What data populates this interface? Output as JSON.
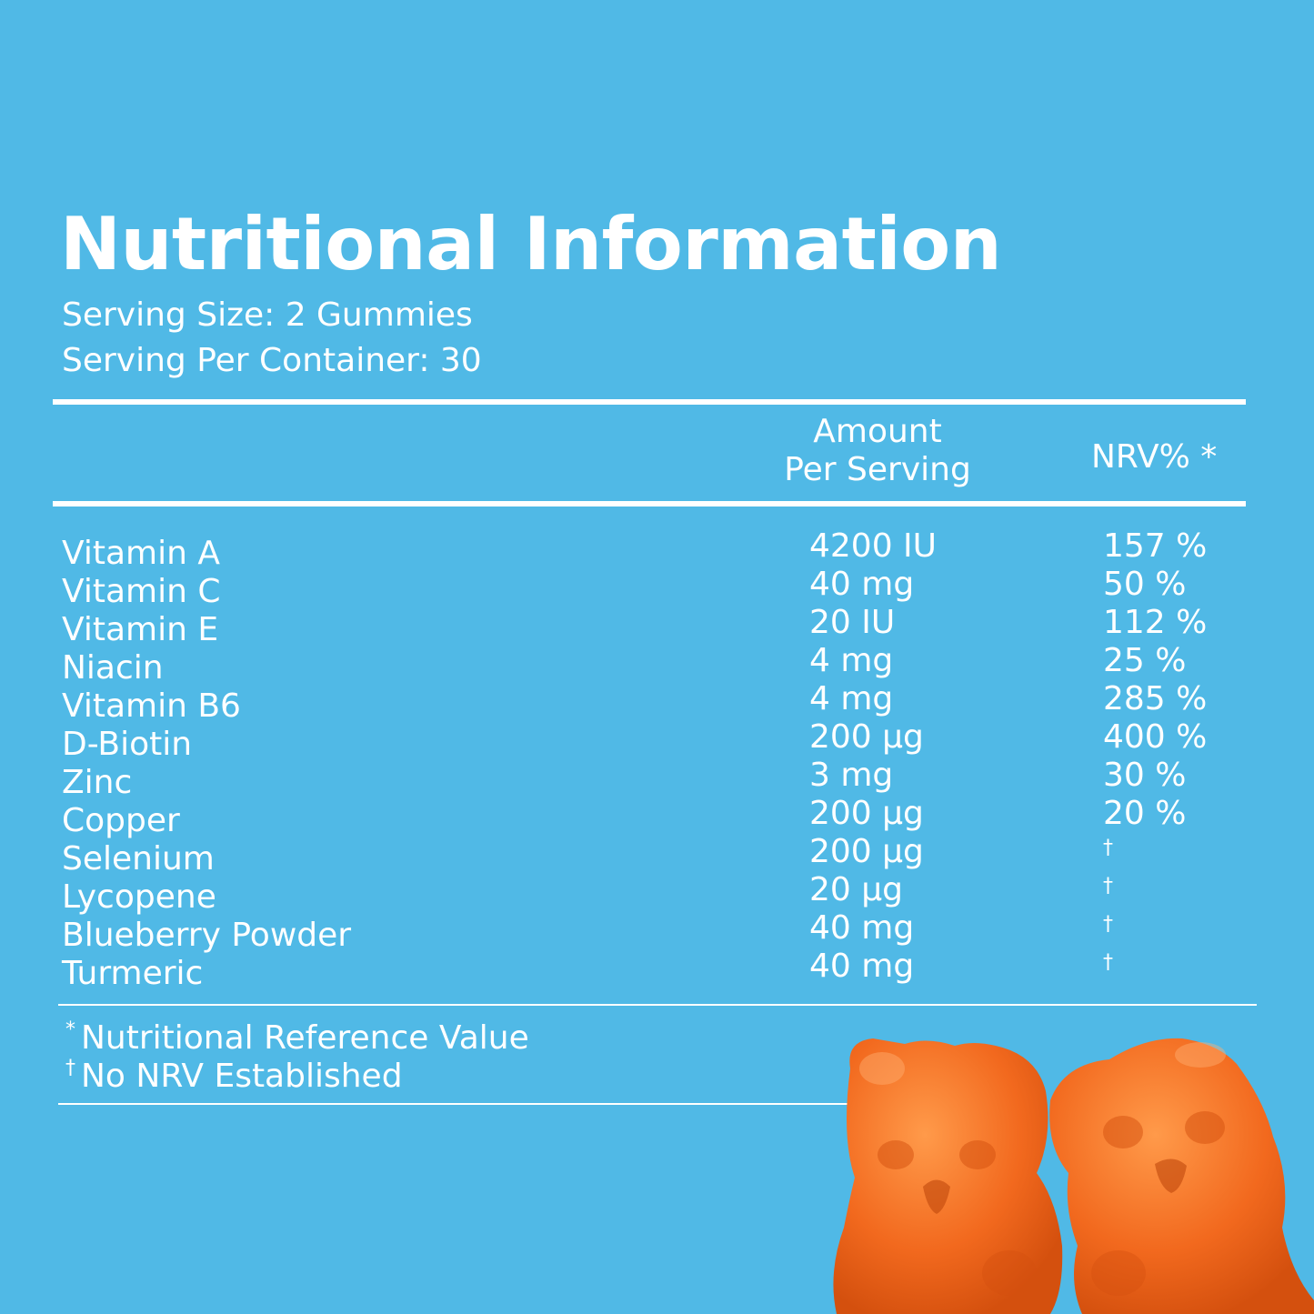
{
  "title": "Nutritional Information",
  "serving_size": "Serving Size: 2 Gummies",
  "servings_per_container": "Serving Per Container: 30",
  "columns": {
    "amount_line1": "Amount",
    "amount_line2": "Per Serving",
    "nrv": "NRV% *"
  },
  "rows": [
    {
      "name": "Vitamin A",
      "amount": "4200 IU",
      "nrv": "157 %"
    },
    {
      "name": "Vitamin C",
      "amount": "40 mg",
      "nrv": "50 %"
    },
    {
      "name": "Vitamin E",
      "amount": "20 IU",
      "nrv": "112 %"
    },
    {
      "name": "Niacin",
      "amount": "4 mg",
      "nrv": "25 %"
    },
    {
      "name": "Vitamin B6",
      "amount": "4 mg",
      "nrv": "285 %"
    },
    {
      "name": "D-Biotin",
      "amount": "200 µg",
      "nrv": "400 %"
    },
    {
      "name": "Zinc",
      "amount": "3 mg",
      "nrv": "30 %"
    },
    {
      "name": "Copper",
      "amount": "200 µg",
      "nrv": "20 %"
    },
    {
      "name": "Selenium",
      "amount": "200 µg",
      "nrv": "†"
    },
    {
      "name": "Lycopene",
      "amount": "20 µg",
      "nrv": "†"
    },
    {
      "name": "Blueberry Powder",
      "amount": "40 mg",
      "nrv": "†"
    },
    {
      "name": "Turmeric",
      "amount": "40 mg",
      "nrv": "†"
    }
  ],
  "footnotes": {
    "star_symbol": "*",
    "star_text": "Nutritional Reference Value",
    "dagger_symbol": "†",
    "dagger_text": "No NRV Established"
  },
  "colors": {
    "background": "#50b9e6",
    "text": "#ffffff",
    "gummy": "#f2691e"
  }
}
